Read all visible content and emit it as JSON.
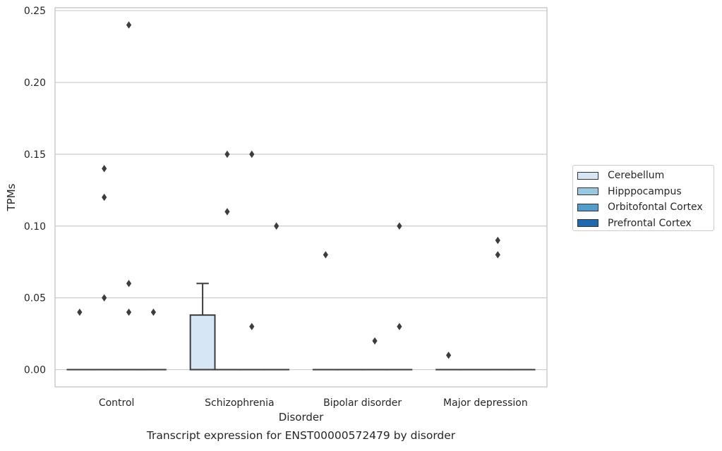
{
  "chart_data": {
    "type": "box",
    "title": "Transcript expression for ENST00000572479 by disorder",
    "xlabel": "Disorder",
    "ylabel": "TPMs",
    "ylim": [
      -0.012,
      0.252
    ],
    "yticks": [
      0.0,
      0.05,
      0.1,
      0.15,
      0.2,
      0.25
    ],
    "ytick_labels": [
      "0.00",
      "0.05",
      "0.10",
      "0.15",
      "0.20",
      "0.25"
    ],
    "grid": "horizontal",
    "legend_position": "right",
    "categories": [
      "Control",
      "Schizophrenia",
      "Bipolar disorder",
      "Major depression"
    ],
    "series": [
      {
        "name": "Cerebellum",
        "color": "#d6e6f4",
        "boxes": [
          {
            "q1": 0,
            "median": 0,
            "q3": 0,
            "whisker_low": 0,
            "whisker_high": 0,
            "outliers": [
              0.04
            ]
          },
          {
            "q1": 0,
            "median": 0,
            "q3": 0.038,
            "whisker_low": 0,
            "whisker_high": 0.06,
            "outliers": []
          },
          {
            "q1": 0,
            "median": 0,
            "q3": 0,
            "whisker_low": 0,
            "whisker_high": 0,
            "outliers": [
              0.08
            ]
          },
          {
            "q1": 0,
            "median": 0,
            "q3": 0,
            "whisker_low": 0,
            "whisker_high": 0,
            "outliers": [
              0.01
            ]
          }
        ]
      },
      {
        "name": "Hipppocampus",
        "color": "#9ac8e0",
        "boxes": [
          {
            "q1": 0,
            "median": 0,
            "q3": 0,
            "whisker_low": 0,
            "whisker_high": 0,
            "outliers": [
              0.05,
              0.12,
              0.14
            ]
          },
          {
            "q1": 0,
            "median": 0,
            "q3": 0,
            "whisker_low": 0,
            "whisker_high": 0,
            "outliers": [
              0.11,
              0.15
            ]
          },
          {
            "q1": 0,
            "median": 0,
            "q3": 0,
            "whisker_low": 0,
            "whisker_high": 0,
            "outliers": []
          },
          {
            "q1": 0,
            "median": 0,
            "q3": 0,
            "whisker_low": 0,
            "whisker_high": 0,
            "outliers": []
          }
        ]
      },
      {
        "name": "Orbitofontal Cortex",
        "color": "#529dcc",
        "boxes": [
          {
            "q1": 0,
            "median": 0,
            "q3": 0,
            "whisker_low": 0,
            "whisker_high": 0,
            "outliers": [
              0.04,
              0.06,
              0.24
            ]
          },
          {
            "q1": 0,
            "median": 0,
            "q3": 0,
            "whisker_low": 0,
            "whisker_high": 0,
            "outliers": [
              0.03,
              0.15
            ]
          },
          {
            "q1": 0,
            "median": 0,
            "q3": 0,
            "whisker_low": 0,
            "whisker_high": 0,
            "outliers": [
              0.02
            ]
          },
          {
            "q1": 0,
            "median": 0,
            "q3": 0,
            "whisker_low": 0,
            "whisker_high": 0,
            "outliers": [
              0.08,
              0.09
            ]
          }
        ]
      },
      {
        "name": "Prefrontal Cortex",
        "color": "#1c6aaf",
        "boxes": [
          {
            "q1": 0,
            "median": 0,
            "q3": 0,
            "whisker_low": 0,
            "whisker_high": 0,
            "outliers": [
              0.04
            ]
          },
          {
            "q1": 0,
            "median": 0,
            "q3": 0,
            "whisker_low": 0,
            "whisker_high": 0,
            "outliers": [
              0.1
            ]
          },
          {
            "q1": 0,
            "median": 0,
            "q3": 0,
            "whisker_low": 0,
            "whisker_high": 0,
            "outliers": [
              0.03,
              0.1
            ]
          },
          {
            "q1": 0,
            "median": 0,
            "q3": 0,
            "whisker_low": 0,
            "whisker_high": 0,
            "outliers": []
          }
        ]
      }
    ]
  }
}
